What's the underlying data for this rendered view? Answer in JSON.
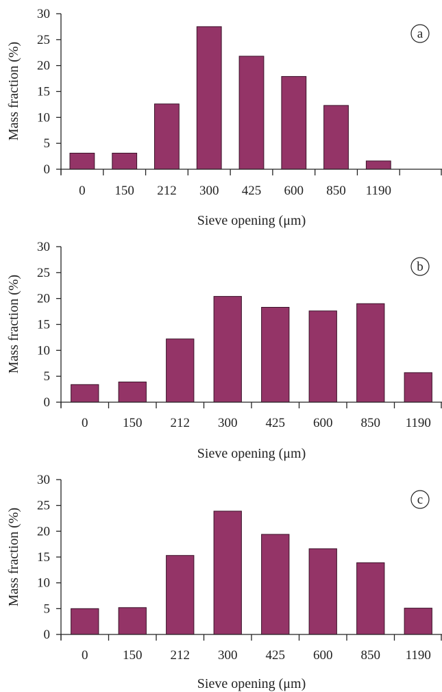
{
  "style": {
    "bar_color": "#943467",
    "bar_stroke": "#3a1228",
    "axis_color": "#222222"
  },
  "chart_data": [
    {
      "type": "bar",
      "panel_label": "a",
      "categories": [
        "0",
        "150",
        "212",
        "300",
        "425",
        "600",
        "850",
        "1190",
        ""
      ],
      "values": [
        3.1,
        3.1,
        12.6,
        27.5,
        21.8,
        17.9,
        12.3,
        1.6,
        null
      ],
      "xlabel": "Sieve opening (μm)",
      "ylabel": "Mass fraction (%)",
      "ylim": [
        0,
        30
      ],
      "yticks": [
        0,
        5,
        10,
        15,
        20,
        25,
        30
      ],
      "grid": false,
      "legend": "none"
    },
    {
      "type": "bar",
      "panel_label": "b",
      "categories": [
        "0",
        "150",
        "212",
        "300",
        "425",
        "600",
        "850",
        "1190"
      ],
      "values": [
        3.4,
        3.9,
        12.2,
        20.4,
        18.3,
        17.6,
        19.0,
        5.7
      ],
      "xlabel": "Sieve opening (μm)",
      "ylabel": "Mass fraction (%)",
      "ylim": [
        0,
        30
      ],
      "yticks": [
        0,
        5,
        10,
        15,
        20,
        25,
        30
      ],
      "grid": false,
      "legend": "none"
    },
    {
      "type": "bar",
      "panel_label": "c",
      "categories": [
        "0",
        "150",
        "212",
        "300",
        "425",
        "600",
        "850",
        "1190"
      ],
      "values": [
        5.0,
        5.2,
        15.3,
        23.9,
        19.4,
        16.6,
        13.9,
        5.1
      ],
      "xlabel": "Sieve opening (μm)",
      "ylabel": "Mass fraction (%)",
      "ylim": [
        0,
        30
      ],
      "yticks": [
        0,
        5,
        10,
        15,
        20,
        25,
        30
      ],
      "grid": false,
      "legend": "none"
    }
  ]
}
